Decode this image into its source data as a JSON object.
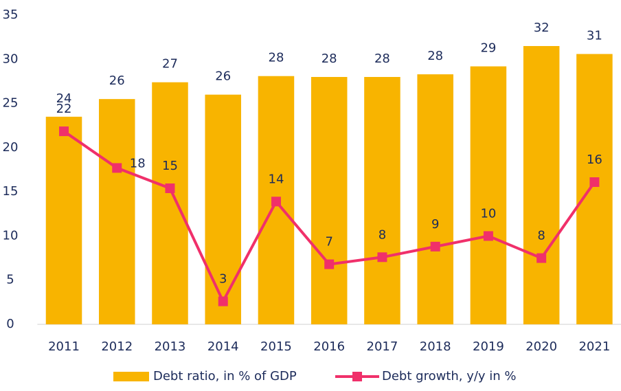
{
  "chart_data": {
    "type": "bar_line",
    "categories": [
      "2011",
      "2012",
      "2013",
      "2014",
      "2015",
      "2016",
      "2017",
      "2018",
      "2019",
      "2020",
      "2021"
    ],
    "series": [
      {
        "name": "Debt ratio, in % of GDP",
        "type": "bar",
        "color": "#f8b400",
        "values": [
          23.5,
          25.5,
          27.4,
          26.0,
          28.1,
          28.0,
          28.0,
          28.3,
          29.2,
          31.5,
          30.6
        ],
        "value_labels": [
          "24",
          "26",
          "27",
          "26",
          "28",
          "28",
          "28",
          "28",
          "29",
          "32",
          "31"
        ]
      },
      {
        "name": "Debt growth, y/y in %",
        "type": "line",
        "color": "#f0306a",
        "values": [
          21.85,
          17.7,
          15.4,
          2.6,
          13.9,
          6.8,
          7.6,
          8.8,
          10.0,
          7.5,
          16.1
        ],
        "value_labels": [
          "22",
          "18",
          "15",
          "3",
          "14",
          "7",
          "8",
          "9",
          "10",
          "8",
          "16"
        ]
      }
    ],
    "ylim": [
      0,
      35
    ],
    "yticks": [
      0,
      5,
      10,
      15,
      20,
      25,
      30,
      35
    ],
    "grid": false,
    "legend": "bottom"
  }
}
